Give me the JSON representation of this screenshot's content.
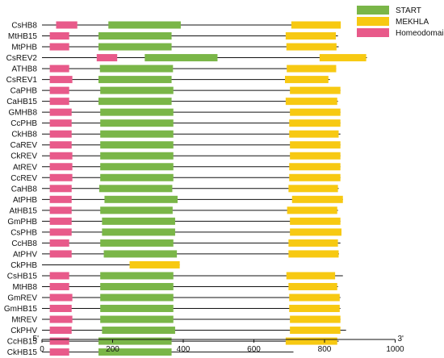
{
  "chart_data": {
    "type": "gene-domain-diagram",
    "colors": {
      "START": "#7ab648",
      "MEKHLA": "#f7c912",
      "Homeodomain": "#e85a8a",
      "backbone": "#111111"
    },
    "legend": [
      {
        "name": "START",
        "color_key": "START"
      },
      {
        "name": "MEKHLA",
        "color_key": "MEKHLA"
      },
      {
        "name": "Homeodomain",
        "color_key": "Homeodomain"
      }
    ],
    "x_axis": {
      "min": 0,
      "max": 1000,
      "ticks": [
        0,
        200,
        400,
        600,
        800,
        1000
      ],
      "tick_labels": [
        "0",
        "200",
        "400",
        "600",
        "800",
        "1000"
      ],
      "left_end_label": "5'",
      "right_end_label": "3'"
    },
    "proteins": [
      {
        "name": "CsHB8",
        "length": 845,
        "domains": [
          {
            "type": "Homeodomain",
            "start": 40,
            "end": 100
          },
          {
            "type": "START",
            "start": 188,
            "end": 393
          },
          {
            "type": "MEKHLA",
            "start": 706,
            "end": 846
          }
        ]
      },
      {
        "name": "MtHB15",
        "length": 838,
        "domains": [
          {
            "type": "Homeodomain",
            "start": 22,
            "end": 77
          },
          {
            "type": "START",
            "start": 160,
            "end": 367
          },
          {
            "type": "MEKHLA",
            "start": 690,
            "end": 832
          }
        ]
      },
      {
        "name": "MtPHB",
        "length": 840,
        "domains": [
          {
            "type": "Homeodomain",
            "start": 22,
            "end": 77
          },
          {
            "type": "START",
            "start": 160,
            "end": 367
          },
          {
            "type": "MEKHLA",
            "start": 692,
            "end": 834
          }
        ]
      },
      {
        "name": "CsREV2",
        "length": 920,
        "domains": [
          {
            "type": "Homeodomain",
            "start": 155,
            "end": 213
          },
          {
            "type": "START",
            "start": 291,
            "end": 497
          },
          {
            "type": "MEKHLA",
            "start": 786,
            "end": 918
          }
        ]
      },
      {
        "name": "ATHB8",
        "length": 833,
        "domains": [
          {
            "type": "Homeodomain",
            "start": 22,
            "end": 77
          },
          {
            "type": "START",
            "start": 164,
            "end": 371
          },
          {
            "type": "MEKHLA",
            "start": 693,
            "end": 833
          }
        ]
      },
      {
        "name": "CsREV1",
        "length": 815,
        "domains": [
          {
            "type": "Homeodomain",
            "start": 22,
            "end": 86
          },
          {
            "type": "START",
            "start": 160,
            "end": 367
          },
          {
            "type": "MEKHLA",
            "start": 688,
            "end": 811
          }
        ]
      },
      {
        "name": "CaPHB",
        "length": 845,
        "domains": [
          {
            "type": "Homeodomain",
            "start": 22,
            "end": 77
          },
          {
            "type": "START",
            "start": 165,
            "end": 372
          },
          {
            "type": "MEKHLA",
            "start": 702,
            "end": 845
          }
        ]
      },
      {
        "name": "CaHB15",
        "length": 838,
        "domains": [
          {
            "type": "Homeodomain",
            "start": 22,
            "end": 77
          },
          {
            "type": "START",
            "start": 160,
            "end": 367
          },
          {
            "type": "MEKHLA",
            "start": 690,
            "end": 836
          }
        ]
      },
      {
        "name": "GMHB8",
        "length": 845,
        "domains": [
          {
            "type": "Homeodomain",
            "start": 22,
            "end": 84
          },
          {
            "type": "START",
            "start": 165,
            "end": 372
          },
          {
            "type": "MEKHLA",
            "start": 702,
            "end": 845
          }
        ]
      },
      {
        "name": "CcPHB",
        "length": 845,
        "domains": [
          {
            "type": "Homeodomain",
            "start": 22,
            "end": 84
          },
          {
            "type": "START",
            "start": 165,
            "end": 372
          },
          {
            "type": "MEKHLA",
            "start": 700,
            "end": 845
          }
        ]
      },
      {
        "name": "CkHB8",
        "length": 845,
        "domains": [
          {
            "type": "Homeodomain",
            "start": 22,
            "end": 84
          },
          {
            "type": "START",
            "start": 165,
            "end": 372
          },
          {
            "type": "MEKHLA",
            "start": 700,
            "end": 840
          }
        ]
      },
      {
        "name": "CaREV",
        "length": 845,
        "domains": [
          {
            "type": "Homeodomain",
            "start": 22,
            "end": 84
          },
          {
            "type": "START",
            "start": 165,
            "end": 372
          },
          {
            "type": "MEKHLA",
            "start": 702,
            "end": 845
          }
        ]
      },
      {
        "name": "CkREV",
        "length": 845,
        "domains": [
          {
            "type": "Homeodomain",
            "start": 22,
            "end": 86
          },
          {
            "type": "START",
            "start": 165,
            "end": 372
          },
          {
            "type": "MEKHLA",
            "start": 702,
            "end": 845
          }
        ]
      },
      {
        "name": "AtREV",
        "length": 845,
        "domains": [
          {
            "type": "Homeodomain",
            "start": 22,
            "end": 86
          },
          {
            "type": "START",
            "start": 165,
            "end": 372
          },
          {
            "type": "MEKHLA",
            "start": 700,
            "end": 845
          }
        ]
      },
      {
        "name": "CcREV",
        "length": 845,
        "domains": [
          {
            "type": "Homeodomain",
            "start": 22,
            "end": 86
          },
          {
            "type": "START",
            "start": 165,
            "end": 372
          },
          {
            "type": "MEKHLA",
            "start": 700,
            "end": 845
          }
        ]
      },
      {
        "name": "CaHB8",
        "length": 840,
        "domains": [
          {
            "type": "Homeodomain",
            "start": 22,
            "end": 84
          },
          {
            "type": "START",
            "start": 162,
            "end": 369
          },
          {
            "type": "MEKHLA",
            "start": 698,
            "end": 838
          }
        ]
      },
      {
        "name": "AtPHB",
        "length": 852,
        "domains": [
          {
            "type": "Homeodomain",
            "start": 22,
            "end": 84
          },
          {
            "type": "START",
            "start": 177,
            "end": 384
          },
          {
            "type": "MEKHLA",
            "start": 708,
            "end": 852
          }
        ]
      },
      {
        "name": "AtHB15",
        "length": 838,
        "domains": [
          {
            "type": "Homeodomain",
            "start": 22,
            "end": 84
          },
          {
            "type": "START",
            "start": 165,
            "end": 370
          },
          {
            "type": "MEKHLA",
            "start": 694,
            "end": 836
          }
        ]
      },
      {
        "name": "GmPHB",
        "length": 845,
        "domains": [
          {
            "type": "Homeodomain",
            "start": 22,
            "end": 84
          },
          {
            "type": "START",
            "start": 170,
            "end": 377
          },
          {
            "type": "MEKHLA",
            "start": 702,
            "end": 845
          }
        ]
      },
      {
        "name": "CsPHB",
        "length": 848,
        "domains": [
          {
            "type": "Homeodomain",
            "start": 22,
            "end": 84
          },
          {
            "type": "START",
            "start": 170,
            "end": 377
          },
          {
            "type": "MEKHLA",
            "start": 702,
            "end": 848
          }
        ]
      },
      {
        "name": "CcHB8",
        "length": 845,
        "domains": [
          {
            "type": "Homeodomain",
            "start": 22,
            "end": 77
          },
          {
            "type": "START",
            "start": 165,
            "end": 372
          },
          {
            "type": "MEKHLA",
            "start": 698,
            "end": 838
          }
        ]
      },
      {
        "name": "AtPHV",
        "length": 841,
        "domains": [
          {
            "type": "Homeodomain",
            "start": 22,
            "end": 84
          },
          {
            "type": "START",
            "start": 175,
            "end": 382
          },
          {
            "type": "MEKHLA",
            "start": 698,
            "end": 840
          }
        ]
      },
      {
        "name": "CkPHB",
        "length": 390,
        "domains": [
          {
            "type": "MEKHLA",
            "start": 248,
            "end": 390
          }
        ]
      },
      {
        "name": "CsHB15",
        "length": 852,
        "domains": [
          {
            "type": "Homeodomain",
            "start": 22,
            "end": 77
          },
          {
            "type": "START",
            "start": 165,
            "end": 372
          },
          {
            "type": "MEKHLA",
            "start": 692,
            "end": 830
          }
        ]
      },
      {
        "name": "MtHB8",
        "length": 838,
        "domains": [
          {
            "type": "Homeodomain",
            "start": 22,
            "end": 77
          },
          {
            "type": "START",
            "start": 165,
            "end": 372
          },
          {
            "type": "MEKHLA",
            "start": 698,
            "end": 836
          }
        ]
      },
      {
        "name": "GmREV",
        "length": 845,
        "domains": [
          {
            "type": "Homeodomain",
            "start": 22,
            "end": 86
          },
          {
            "type": "START",
            "start": 165,
            "end": 372
          },
          {
            "type": "MEKHLA",
            "start": 700,
            "end": 843
          }
        ]
      },
      {
        "name": "GmHB15",
        "length": 845,
        "domains": [
          {
            "type": "Homeodomain",
            "start": 22,
            "end": 84
          },
          {
            "type": "START",
            "start": 165,
            "end": 372
          },
          {
            "type": "MEKHLA",
            "start": 700,
            "end": 843
          }
        ]
      },
      {
        "name": "MtREV",
        "length": 845,
        "domains": [
          {
            "type": "Homeodomain",
            "start": 22,
            "end": 86
          },
          {
            "type": "START",
            "start": 165,
            "end": 372
          },
          {
            "type": "MEKHLA",
            "start": 702,
            "end": 845
          }
        ]
      },
      {
        "name": "CkPHV",
        "length": 861,
        "domains": [
          {
            "type": "Homeodomain",
            "start": 22,
            "end": 84
          },
          {
            "type": "START",
            "start": 170,
            "end": 377
          },
          {
            "type": "MEKHLA",
            "start": 702,
            "end": 845
          }
        ]
      },
      {
        "name": "CcHB15",
        "length": 840,
        "domains": [
          {
            "type": "Homeodomain",
            "start": 22,
            "end": 77
          },
          {
            "type": "START",
            "start": 160,
            "end": 367
          },
          {
            "type": "MEKHLA",
            "start": 690,
            "end": 836
          }
        ]
      },
      {
        "name": "CkHB15",
        "length": 712,
        "domains": [
          {
            "type": "Homeodomain",
            "start": 22,
            "end": 77
          },
          {
            "type": "START",
            "start": 160,
            "end": 367
          }
        ]
      }
    ]
  }
}
